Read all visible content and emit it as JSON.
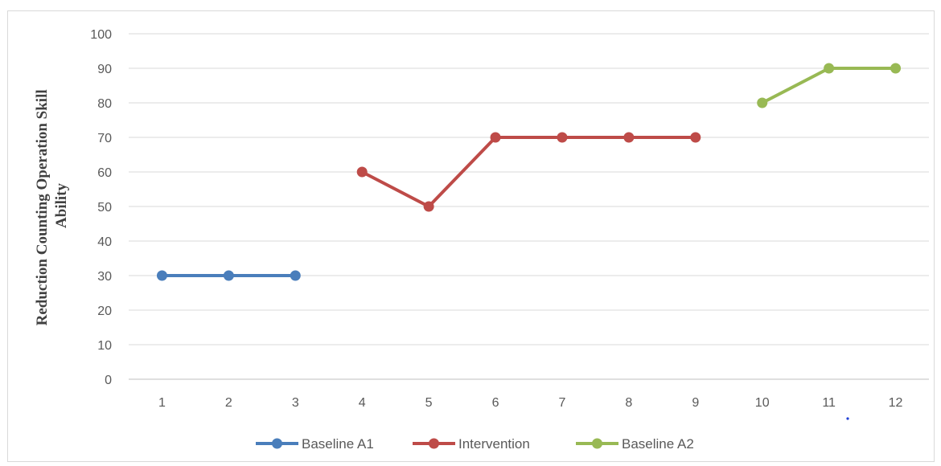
{
  "chart_data": {
    "type": "line",
    "title": "",
    "xlabel": "",
    "ylabel_lines": [
      "Reduction Counting Operation Skill",
      "Ability"
    ],
    "categories": [
      "1",
      "2",
      "3",
      "4",
      "5",
      "6",
      "7",
      "8",
      "9",
      "10",
      "11",
      "12"
    ],
    "yticks": [
      "0",
      "10",
      "20",
      "30",
      "40",
      "50",
      "60",
      "70",
      "80",
      "90",
      "100"
    ],
    "ylim": [
      0,
      100
    ],
    "grid": true,
    "legend_position": "bottom",
    "series": [
      {
        "name": "Baseline A1",
        "color": "#4a7ebb",
        "points": [
          [
            1,
            30
          ],
          [
            2,
            30
          ],
          [
            3,
            30
          ]
        ]
      },
      {
        "name": "Intervention",
        "color": "#be4b48",
        "points": [
          [
            4,
            60
          ],
          [
            5,
            50
          ],
          [
            6,
            70
          ],
          [
            7,
            70
          ],
          [
            8,
            70
          ],
          [
            9,
            70
          ]
        ]
      },
      {
        "name": "Baseline A2",
        "color": "#98b954",
        "points": [
          [
            10,
            80
          ],
          [
            11,
            90
          ],
          [
            12,
            90
          ]
        ]
      }
    ]
  }
}
